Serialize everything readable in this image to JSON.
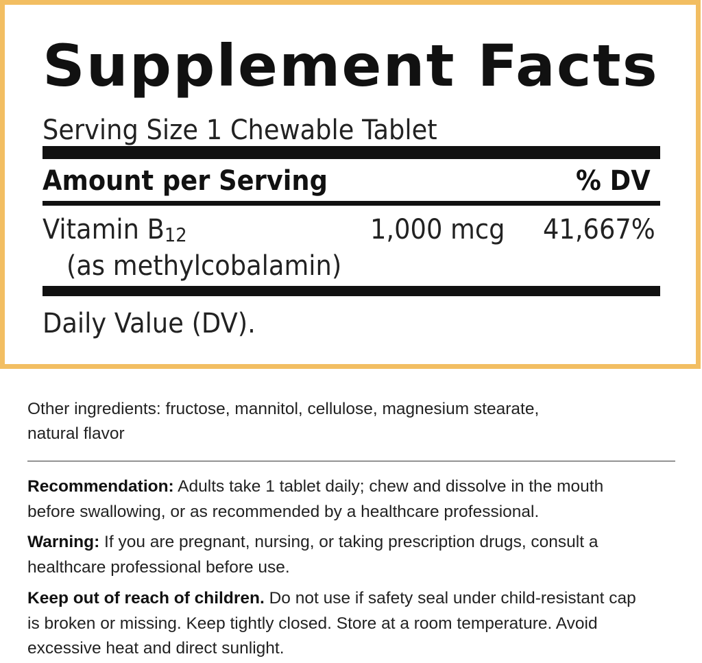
{
  "panel": {
    "title": "Supplement Facts",
    "serving_size": "Serving Size 1 Chewable Tablet",
    "header": {
      "amount": "Amount per Serving",
      "dv": "% DV"
    },
    "rows": [
      {
        "name": "Vitamin B",
        "subscript": "12",
        "detail": "(as methylcobalamin)",
        "amount": "1,000 mcg",
        "dv": "41,667%"
      }
    ],
    "footnote": "Daily Value (DV).",
    "border_color": "#f2be62"
  },
  "other_ingredients": {
    "line1": "Other ingredients: fructose, mannitol, cellulose, magnesium stearate,",
    "line2": "natural flavor"
  },
  "recommendation": {
    "label": "Recommendation:",
    "line1": " Adults take 1 tablet daily; chew and dissolve in the mouth",
    "line2": "before swallowing, or as recommended by a healthcare professional."
  },
  "warning": {
    "label": "Warning:",
    "line1": " If you are pregnant, nursing, or taking prescription drugs, consult a",
    "line2": "healthcare professional before use."
  },
  "keep_out": {
    "label": "Keep out of reach of children.",
    "line1": " Do not use if safety seal under child-resistant cap",
    "line2": "is broken or missing. Keep tightly closed. Store at a room temperature. Avoid",
    "line3": "excessive heat and direct sunlight."
  }
}
